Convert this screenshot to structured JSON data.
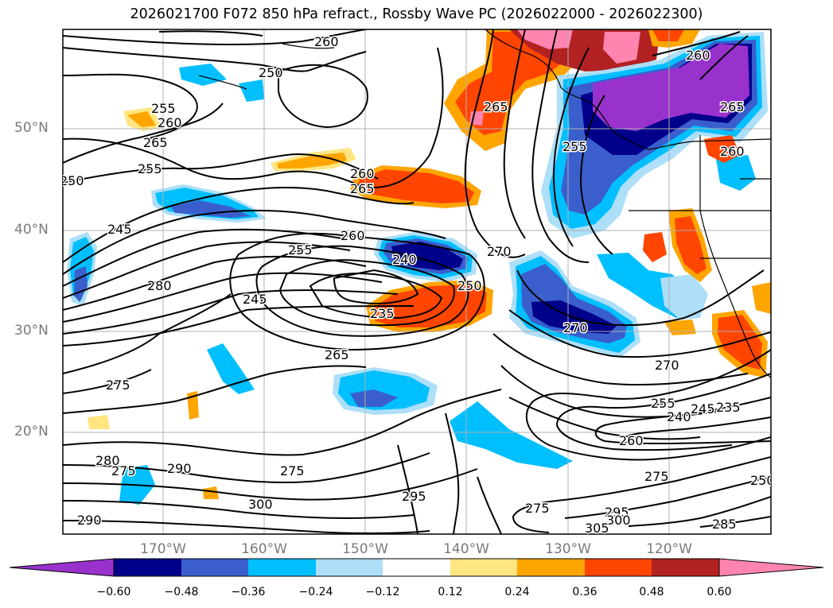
{
  "title": "2026021700 F072 850 hPa refract., Rossby Wave PC (2026022000 - 2026022300)",
  "lat_labels": [
    "50°N",
    "40°N",
    "30°N",
    "20°N"
  ],
  "lon_labels": [
    "170°W",
    "160°W",
    "150°W",
    "140°W",
    "130°W",
    "120°W"
  ],
  "colorbar": {
    "ticks": [
      "−0.60",
      "−0.48",
      "−0.36",
      "−0.24",
      "−0.12",
      "0.12",
      "0.24",
      "0.36",
      "0.48",
      "0.60"
    ],
    "colors": [
      "#9932CC",
      "#00008B",
      "#3A5FCD",
      "#00BFFF",
      "#ADDFF8",
      "#FFFFFF",
      "#FFE680",
      "#FFA500",
      "#FF4500",
      "#B22222",
      "#FF85B0"
    ]
  },
  "contour_labels": [
    {
      "text": "260"
    },
    {
      "text": "250"
    },
    {
      "text": "255"
    },
    {
      "text": "260"
    },
    {
      "text": "265"
    },
    {
      "text": "255"
    },
    {
      "text": "250"
    },
    {
      "text": "245"
    },
    {
      "text": "260"
    },
    {
      "text": "265"
    },
    {
      "text": "260"
    },
    {
      "text": "255"
    },
    {
      "text": "240"
    },
    {
      "text": "245"
    },
    {
      "text": "235"
    },
    {
      "text": "250"
    },
    {
      "text": "265"
    },
    {
      "text": "280"
    },
    {
      "text": "275"
    },
    {
      "text": "270"
    },
    {
      "text": "270"
    },
    {
      "text": "270"
    },
    {
      "text": "265"
    },
    {
      "text": "255"
    },
    {
      "text": "265"
    },
    {
      "text": "260"
    },
    {
      "text": "260"
    },
    {
      "text": "255"
    },
    {
      "text": "240"
    },
    {
      "text": "245"
    },
    {
      "text": "235"
    },
    {
      "text": "260"
    },
    {
      "text": "275"
    },
    {
      "text": "250"
    },
    {
      "text": "285"
    },
    {
      "text": "280"
    },
    {
      "text": "275"
    },
    {
      "text": "290"
    },
    {
      "text": "275"
    },
    {
      "text": "300"
    },
    {
      "text": "295"
    },
    {
      "text": "290"
    },
    {
      "text": "275"
    },
    {
      "text": "295"
    },
    {
      "text": "300"
    },
    {
      "text": "305"
    }
  ]
}
